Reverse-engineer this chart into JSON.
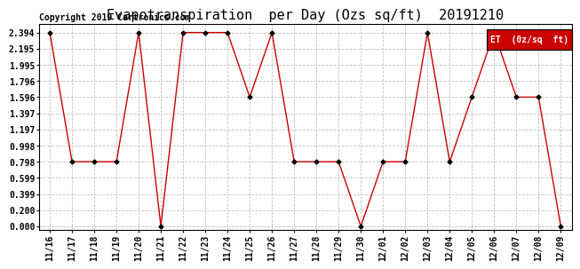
{
  "title": "Evapotranspiration  per Day (Ozs sq/ft)  20191210",
  "copyright": "Copyright 2019 Cartronics.com",
  "legend_label": "ET  (0z/sq  ft)",
  "dates": [
    "11/16",
    "11/17",
    "11/18",
    "11/19",
    "11/20",
    "11/21",
    "11/22",
    "11/23",
    "11/24",
    "11/25",
    "11/26",
    "11/27",
    "11/28",
    "11/29",
    "11/30",
    "12/01",
    "12/02",
    "12/03",
    "12/04",
    "12/05",
    "12/06",
    "12/07",
    "12/08",
    "12/09"
  ],
  "values": [
    2.394,
    0.798,
    0.798,
    0.798,
    2.394,
    0.0,
    2.394,
    2.394,
    2.394,
    1.596,
    2.394,
    0.798,
    0.798,
    0.798,
    0.0,
    0.798,
    0.798,
    2.394,
    0.798,
    1.596,
    2.394,
    1.596,
    1.596,
    0.0
  ],
  "line_color": "#cc0000",
  "marker_color": "#000000",
  "background_color": "#ffffff",
  "grid_color": "#c0c0c0",
  "yticks": [
    0.0,
    0.2,
    0.399,
    0.599,
    0.798,
    0.998,
    1.197,
    1.397,
    1.596,
    1.796,
    1.995,
    2.195,
    2.394
  ],
  "ylim": [
    -0.05,
    2.5
  ],
  "title_fontsize": 11,
  "tick_fontsize": 7,
  "copyright_fontsize": 7,
  "legend_bg": "#cc0000",
  "legend_text_color": "#ffffff",
  "legend_fontsize": 7
}
